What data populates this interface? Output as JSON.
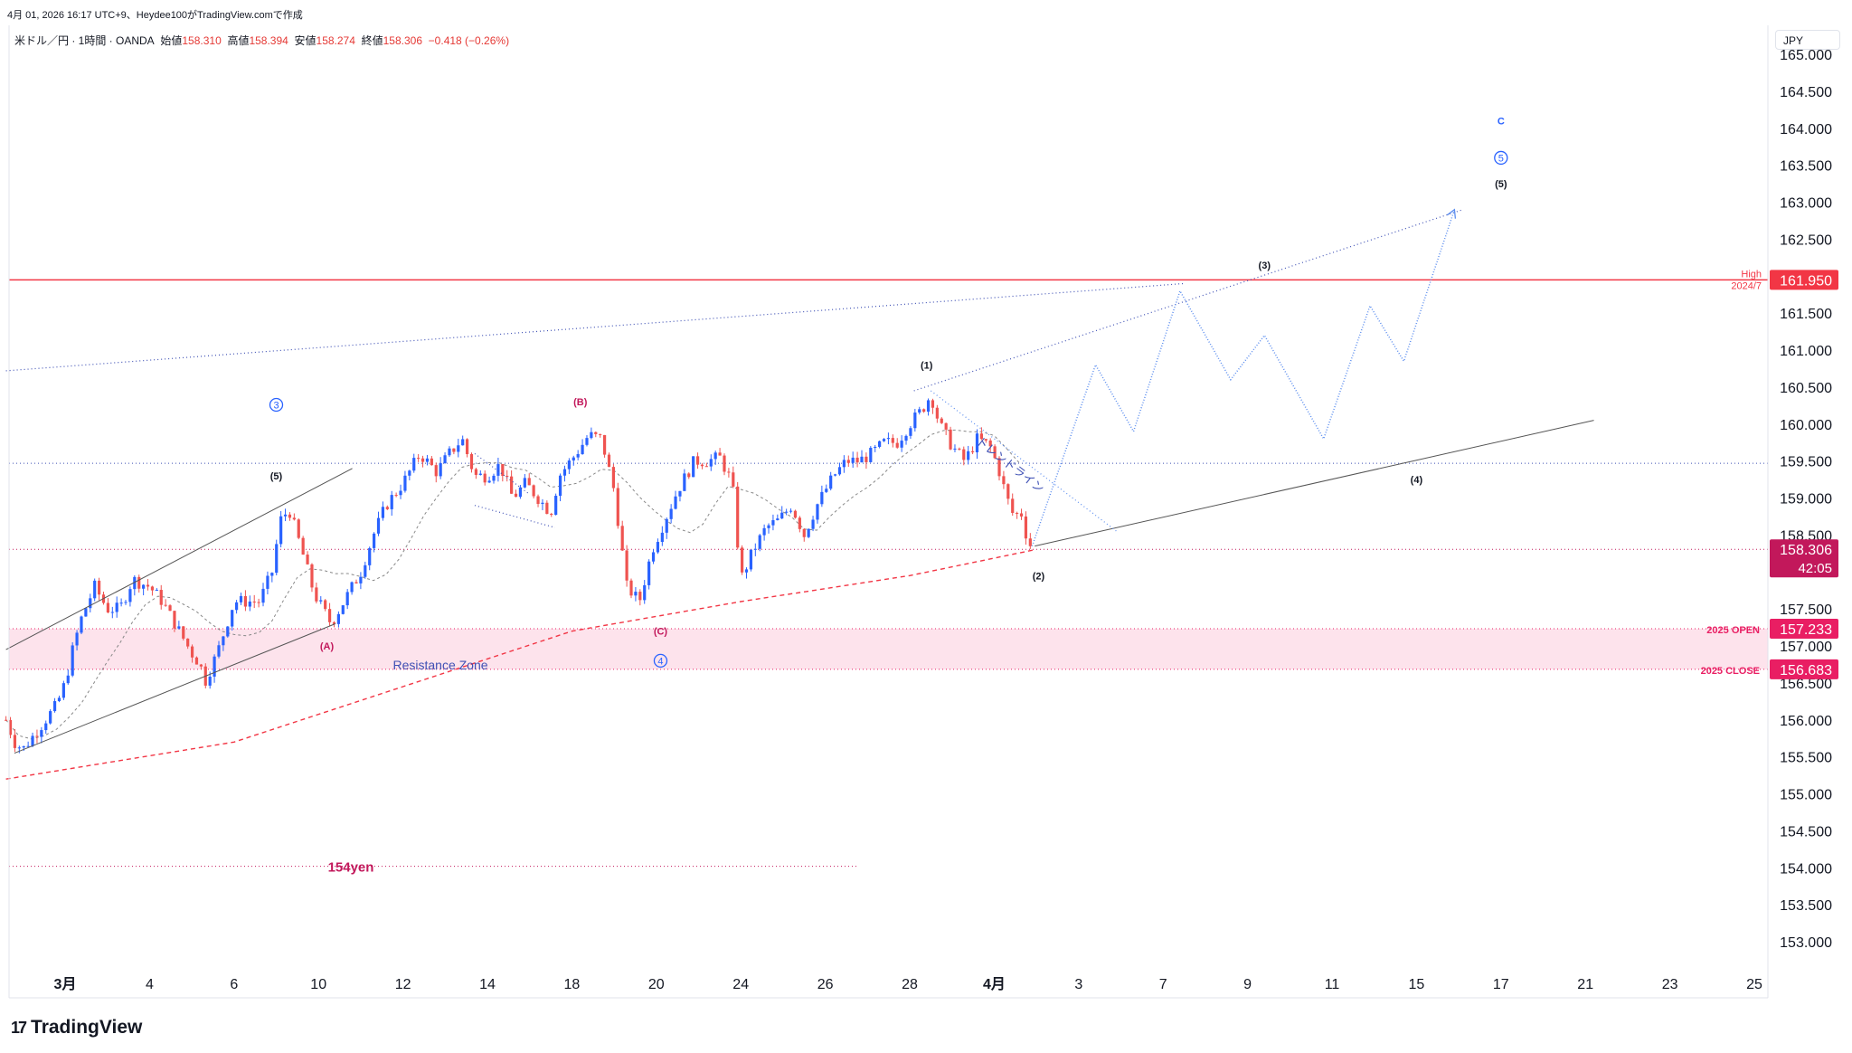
{
  "header": {
    "timestamp_line": "4月 01, 2026 16:17 UTC+9、Heydee100がTradingView.comで作成",
    "symbol": "米ドル／円 · 1時間 · OANDA",
    "open_label": "始値",
    "open_value": "158.310",
    "high_label": "高値",
    "high_value": "158.394",
    "low_label": "安値",
    "low_value": "158.274",
    "close_label": "終値",
    "close_value": "158.306",
    "change": "−0.418 (−0.26%)"
  },
  "currency_label": "JPY",
  "brand": {
    "logo_text": "17",
    "name": "TradingView"
  },
  "colors": {
    "up": "#2962ff",
    "down": "#ef5350",
    "price_line": "#f23645",
    "pink_label": "#e91e63",
    "zone": "#fde3ec",
    "wave_blue": "#2962ff",
    "projection": "#5b8def",
    "magenta": "#c2185b"
  },
  "chart_data": {
    "type": "candlestick",
    "instrument": "米ドル／円",
    "timeframe": "1時間",
    "ylim": [
      152.95,
      165.35
    ],
    "y_ticks": [
      "165.000",
      "164.500",
      "164.000",
      "163.500",
      "163.000",
      "162.500",
      "161.500",
      "161.000",
      "160.500",
      "160.000",
      "159.500",
      "159.000",
      "158.500",
      "157.500",
      "157.000",
      "156.500",
      "156.000",
      "155.500",
      "155.000",
      "154.500",
      "154.000",
      "153.500",
      "153.000"
    ],
    "x_ticks": [
      {
        "label": "3月",
        "day": 0,
        "bold": true
      },
      {
        "label": "4",
        "day": 2
      },
      {
        "label": "6",
        "day": 4
      },
      {
        "label": "10",
        "day": 6
      },
      {
        "label": "12",
        "day": 8
      },
      {
        "label": "14",
        "day": 10
      },
      {
        "label": "18",
        "day": 12
      },
      {
        "label": "20",
        "day": 14
      },
      {
        "label": "24",
        "day": 16
      },
      {
        "label": "26",
        "day": 18
      },
      {
        "label": "28",
        "day": 20
      },
      {
        "label": "4月",
        "day": 22,
        "bold": true
      },
      {
        "label": "3",
        "day": 24
      },
      {
        "label": "7",
        "day": 26
      },
      {
        "label": "9",
        "day": 28
      },
      {
        "label": "11",
        "day": 30
      },
      {
        "label": "15",
        "day": 32
      },
      {
        "label": "17",
        "day": 34
      },
      {
        "label": "21",
        "day": 36
      },
      {
        "label": "23",
        "day": 38
      },
      {
        "label": "25",
        "day": 40
      }
    ],
    "price_path": [
      [
        -1.4,
        156.0
      ],
      [
        -1.2,
        155.7
      ],
      [
        -1.0,
        155.6
      ],
      [
        -0.6,
        155.9
      ],
      [
        -0.2,
        156.2
      ],
      [
        0.0,
        156.5
      ],
      [
        0.2,
        157.0
      ],
      [
        0.4,
        157.4
      ],
      [
        0.7,
        157.8
      ],
      [
        1.0,
        157.5
      ],
      [
        1.3,
        157.5
      ],
      [
        1.6,
        157.9
      ],
      [
        2.0,
        157.8
      ],
      [
        2.3,
        157.6
      ],
      [
        2.6,
        157.3
      ],
      [
        2.8,
        157.1
      ],
      [
        3.0,
        156.9
      ],
      [
        3.2,
        156.75
      ],
      [
        3.3,
        156.5
      ],
      [
        3.6,
        156.9
      ],
      [
        4.0,
        157.6
      ],
      [
        4.3,
        157.6
      ],
      [
        4.6,
        157.6
      ],
      [
        4.9,
        158.0
      ],
      [
        5.1,
        158.7
      ],
      [
        5.3,
        158.85
      ],
      [
        5.6,
        158.3
      ],
      [
        5.9,
        157.7
      ],
      [
        6.3,
        157.3
      ],
      [
        6.6,
        157.6
      ],
      [
        7.0,
        158.0
      ],
      [
        7.3,
        158.5
      ],
      [
        7.6,
        158.9
      ],
      [
        8.0,
        159.2
      ],
      [
        8.4,
        159.6
      ],
      [
        8.8,
        159.35
      ],
      [
        9.1,
        159.6
      ],
      [
        9.4,
        159.8
      ],
      [
        9.7,
        159.3
      ],
      [
        10.0,
        159.3
      ],
      [
        10.3,
        159.45
      ],
      [
        10.6,
        159.0
      ],
      [
        10.9,
        159.2
      ],
      [
        11.2,
        159.0
      ],
      [
        11.5,
        158.8
      ],
      [
        11.7,
        159.3
      ],
      [
        12.1,
        159.6
      ],
      [
        12.4,
        159.85
      ],
      [
        12.7,
        159.8
      ],
      [
        13.0,
        159.1
      ],
      [
        13.3,
        157.8
      ],
      [
        13.6,
        157.6
      ],
      [
        13.9,
        158.3
      ],
      [
        14.2,
        158.7
      ],
      [
        14.5,
        159.1
      ],
      [
        14.9,
        159.5
      ],
      [
        15.2,
        159.5
      ],
      [
        15.5,
        159.55
      ],
      [
        15.8,
        159.2
      ],
      [
        16.0,
        157.9
      ],
      [
        16.3,
        158.3
      ],
      [
        16.6,
        158.6
      ],
      [
        16.9,
        158.7
      ],
      [
        17.2,
        158.9
      ],
      [
        17.5,
        158.5
      ],
      [
        17.8,
        158.9
      ],
      [
        18.2,
        159.3
      ],
      [
        18.5,
        159.5
      ],
      [
        18.8,
        159.5
      ],
      [
        19.1,
        159.6
      ],
      [
        19.4,
        159.75
      ],
      [
        19.7,
        159.75
      ],
      [
        20.0,
        160.0
      ],
      [
        20.3,
        160.2
      ],
      [
        20.5,
        160.4
      ],
      [
        20.7,
        160.0
      ],
      [
        21.0,
        159.7
      ],
      [
        21.3,
        159.5
      ],
      [
        21.6,
        159.8
      ],
      [
        21.9,
        159.7
      ],
      [
        22.1,
        159.4
      ],
      [
        22.3,
        159.0
      ],
      [
        22.5,
        158.7
      ],
      [
        22.6,
        158.9
      ],
      [
        22.8,
        158.4
      ],
      [
        22.96,
        158.3
      ]
    ],
    "price_lines": [
      {
        "name": "High 2024/7",
        "label": "High",
        "sublabel": "2024/7",
        "value": 161.95,
        "color": "#f23645",
        "tag": "161.950"
      },
      {
        "name": "2025 OPEN",
        "label": "2025 OPEN",
        "value": 157.233,
        "color": "#e91e63",
        "tag": "157.233"
      },
      {
        "name": "2025 CLOSE",
        "label": "2025 CLOSE",
        "value": 156.683,
        "color": "#e91e63",
        "tag": "156.683"
      },
      {
        "name": "current",
        "value": 158.306,
        "color": "#c2185b",
        "tag": "158.306",
        "countdown": "42:05"
      }
    ],
    "horizontal_levels": [
      {
        "value": 159.47,
        "color": "#3f51b5"
      },
      {
        "value": 154.02,
        "label": "154yen",
        "color": "#c2185b"
      }
    ],
    "zone": {
      "label": "Resistance Zone",
      "from": 156.683,
      "to": 157.233
    },
    "projection_path": [
      [
        22.9,
        158.35
      ],
      [
        24.4,
        160.8
      ],
      [
        25.3,
        159.9
      ],
      [
        26.4,
        161.8
      ],
      [
        27.6,
        160.6
      ],
      [
        28.4,
        161.2
      ],
      [
        29.8,
        159.8
      ],
      [
        30.9,
        161.6
      ],
      [
        31.7,
        160.85
      ],
      [
        32.9,
        162.9
      ]
    ],
    "trend_label": "トレンドライン",
    "wave_labels": [
      {
        "text": "③",
        "day": 5.0,
        "price": 160.26,
        "style": "circle-blue"
      },
      {
        "text": "(5)",
        "day": 5.0,
        "price": 159.3,
        "style": "black"
      },
      {
        "text": "(A)",
        "day": 6.2,
        "price": 157.0,
        "style": "magenta"
      },
      {
        "text": "(B)",
        "day": 12.2,
        "price": 160.3,
        "style": "magenta"
      },
      {
        "text": "(C)",
        "day": 14.1,
        "price": 157.2,
        "style": "magenta"
      },
      {
        "text": "④",
        "day": 14.1,
        "price": 156.8,
        "style": "circle-blue"
      },
      {
        "text": "(1)",
        "day": 20.4,
        "price": 160.8,
        "style": "black"
      },
      {
        "text": "(2)",
        "day": 23.05,
        "price": 157.95,
        "style": "black"
      },
      {
        "text": "(3)",
        "day": 28.4,
        "price": 162.15,
        "style": "black"
      },
      {
        "text": "(4)",
        "day": 32.0,
        "price": 159.25,
        "style": "black"
      },
      {
        "text": "C",
        "day": 34.0,
        "price": 164.1,
        "style": "blue"
      },
      {
        "text": "⑤",
        "day": 34.0,
        "price": 163.6,
        "style": "circle-blue"
      },
      {
        "text": "(5)",
        "day": 34.0,
        "price": 163.25,
        "style": "black"
      }
    ]
  }
}
